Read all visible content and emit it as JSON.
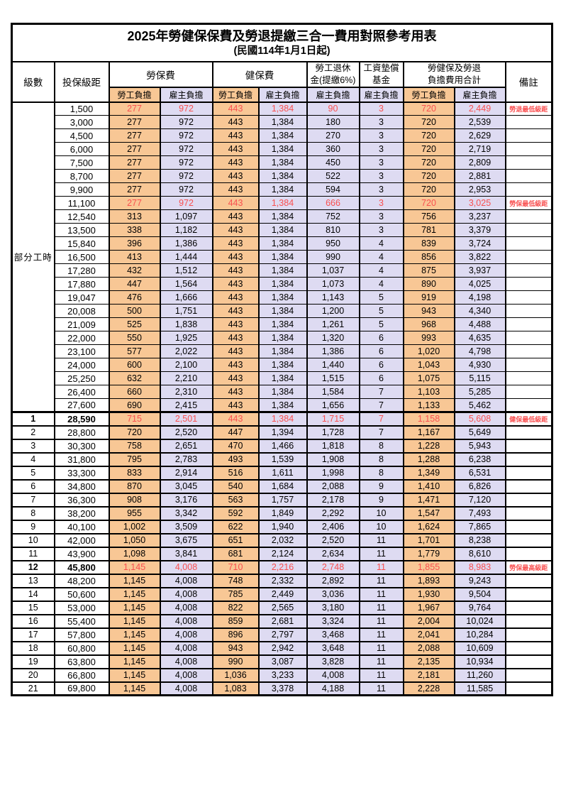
{
  "title": "2025年勞健保保費及勞退提繳三合一費用對照參考用表",
  "subtitle": "(民國114年1月1日起)",
  "part_time_label": "部分工時",
  "columns": {
    "level": "級數",
    "salary": "投保級距",
    "labor": "勞保費",
    "health": "健保費",
    "pension_line1": "勞工退休",
    "pension_line2": "金(提繳6%)",
    "wage_fund_line1": "工資墊償",
    "wage_fund_line2": "基金",
    "total_line1": "勞健保及勞退",
    "total_line2": "負擔費用合計",
    "remark": "備註",
    "employee_share": "勞工負擔",
    "employer_share": "雇主負擔"
  },
  "colors": {
    "employee_bg": "#F8C795",
    "employer_bg": "#DEDBF2",
    "highlight_text": "#F95050"
  },
  "rows": [
    {
      "level": "",
      "salary": "1,500",
      "v": [
        "277",
        "972",
        "443",
        "1,384",
        "90",
        "3",
        "720",
        "2,449"
      ],
      "remark": "勞退最低級距",
      "red": true
    },
    {
      "level": "",
      "salary": "3,000",
      "v": [
        "277",
        "972",
        "443",
        "1,384",
        "180",
        "3",
        "720",
        "2,539"
      ]
    },
    {
      "level": "",
      "salary": "4,500",
      "v": [
        "277",
        "972",
        "443",
        "1,384",
        "270",
        "3",
        "720",
        "2,629"
      ]
    },
    {
      "level": "",
      "salary": "6,000",
      "v": [
        "277",
        "972",
        "443",
        "1,384",
        "360",
        "3",
        "720",
        "2,719"
      ]
    },
    {
      "level": "",
      "salary": "7,500",
      "v": [
        "277",
        "972",
        "443",
        "1,384",
        "450",
        "3",
        "720",
        "2,809"
      ]
    },
    {
      "level": "",
      "salary": "8,700",
      "v": [
        "277",
        "972",
        "443",
        "1,384",
        "522",
        "3",
        "720",
        "2,881"
      ]
    },
    {
      "level": "",
      "salary": "9,900",
      "v": [
        "277",
        "972",
        "443",
        "1,384",
        "594",
        "3",
        "720",
        "2,953"
      ]
    },
    {
      "level": "",
      "salary": "11,100",
      "v": [
        "277",
        "972",
        "443",
        "1,384",
        "666",
        "3",
        "720",
        "3,025"
      ],
      "remark": "勞保最低級距",
      "red": true
    },
    {
      "level": "",
      "salary": "12,540",
      "v": [
        "313",
        "1,097",
        "443",
        "1,384",
        "752",
        "3",
        "756",
        "3,237"
      ]
    },
    {
      "level": "",
      "salary": "13,500",
      "v": [
        "338",
        "1,182",
        "443",
        "1,384",
        "810",
        "3",
        "781",
        "3,379"
      ]
    },
    {
      "level": "",
      "salary": "15,840",
      "v": [
        "396",
        "1,386",
        "443",
        "1,384",
        "950",
        "4",
        "839",
        "3,724"
      ]
    },
    {
      "level": "",
      "salary": "16,500",
      "v": [
        "413",
        "1,444",
        "443",
        "1,384",
        "990",
        "4",
        "856",
        "3,822"
      ]
    },
    {
      "level": "",
      "salary": "17,280",
      "v": [
        "432",
        "1,512",
        "443",
        "1,384",
        "1,037",
        "4",
        "875",
        "3,937"
      ]
    },
    {
      "level": "",
      "salary": "17,880",
      "v": [
        "447",
        "1,564",
        "443",
        "1,384",
        "1,073",
        "4",
        "890",
        "4,025"
      ]
    },
    {
      "level": "",
      "salary": "19,047",
      "v": [
        "476",
        "1,666",
        "443",
        "1,384",
        "1,143",
        "5",
        "919",
        "4,198"
      ]
    },
    {
      "level": "",
      "salary": "20,008",
      "v": [
        "500",
        "1,751",
        "443",
        "1,384",
        "1,200",
        "5",
        "943",
        "4,340"
      ]
    },
    {
      "level": "",
      "salary": "21,009",
      "v": [
        "525",
        "1,838",
        "443",
        "1,384",
        "1,261",
        "5",
        "968",
        "4,488"
      ]
    },
    {
      "level": "",
      "salary": "22,000",
      "v": [
        "550",
        "1,925",
        "443",
        "1,384",
        "1,320",
        "6",
        "993",
        "4,635"
      ]
    },
    {
      "level": "",
      "salary": "23,100",
      "v": [
        "577",
        "2,022",
        "443",
        "1,384",
        "1,386",
        "6",
        "1,020",
        "4,798"
      ]
    },
    {
      "level": "",
      "salary": "24,000",
      "v": [
        "600",
        "2,100",
        "443",
        "1,384",
        "1,440",
        "6",
        "1,043",
        "4,930"
      ]
    },
    {
      "level": "",
      "salary": "25,250",
      "v": [
        "632",
        "2,210",
        "443",
        "1,384",
        "1,515",
        "6",
        "1,075",
        "5,115"
      ]
    },
    {
      "level": "",
      "salary": "26,400",
      "v": [
        "660",
        "2,310",
        "443",
        "1,384",
        "1,584",
        "7",
        "1,103",
        "5,285"
      ]
    },
    {
      "level": "",
      "salary": "27,600",
      "v": [
        "690",
        "2,415",
        "443",
        "1,384",
        "1,656",
        "7",
        "1,133",
        "5,462"
      ]
    },
    {
      "level": "1",
      "salary": "28,590",
      "v": [
        "715",
        "2,501",
        "443",
        "1,384",
        "1,715",
        "7",
        "1,158",
        "5,608"
      ],
      "remark": "健保最低級距",
      "red": true,
      "bold": true
    },
    {
      "level": "2",
      "salary": "28,800",
      "v": [
        "720",
        "2,520",
        "447",
        "1,394",
        "1,728",
        "7",
        "1,167",
        "5,649"
      ]
    },
    {
      "level": "3",
      "salary": "30,300",
      "v": [
        "758",
        "2,651",
        "470",
        "1,466",
        "1,818",
        "8",
        "1,228",
        "5,943"
      ]
    },
    {
      "level": "4",
      "salary": "31,800",
      "v": [
        "795",
        "2,783",
        "493",
        "1,539",
        "1,908",
        "8",
        "1,288",
        "6,238"
      ]
    },
    {
      "level": "5",
      "salary": "33,300",
      "v": [
        "833",
        "2,914",
        "516",
        "1,611",
        "1,998",
        "8",
        "1,349",
        "6,531"
      ]
    },
    {
      "level": "6",
      "salary": "34,800",
      "v": [
        "870",
        "3,045",
        "540",
        "1,684",
        "2,088",
        "9",
        "1,410",
        "6,826"
      ]
    },
    {
      "level": "7",
      "salary": "36,300",
      "v": [
        "908",
        "3,176",
        "563",
        "1,757",
        "2,178",
        "9",
        "1,471",
        "7,120"
      ]
    },
    {
      "level": "8",
      "salary": "38,200",
      "v": [
        "955",
        "3,342",
        "592",
        "1,849",
        "2,292",
        "10",
        "1,547",
        "7,493"
      ]
    },
    {
      "level": "9",
      "salary": "40,100",
      "v": [
        "1,002",
        "3,509",
        "622",
        "1,940",
        "2,406",
        "10",
        "1,624",
        "7,865"
      ]
    },
    {
      "level": "10",
      "salary": "42,000",
      "v": [
        "1,050",
        "3,675",
        "651",
        "2,032",
        "2,520",
        "11",
        "1,701",
        "8,238"
      ]
    },
    {
      "level": "11",
      "salary": "43,900",
      "v": [
        "1,098",
        "3,841",
        "681",
        "2,124",
        "2,634",
        "11",
        "1,779",
        "8,610"
      ]
    },
    {
      "level": "12",
      "salary": "45,800",
      "v": [
        "1,145",
        "4,008",
        "710",
        "2,216",
        "2,748",
        "11",
        "1,855",
        "8,983"
      ],
      "remark": "勞保最高級距",
      "red": true,
      "bold": true
    },
    {
      "level": "13",
      "salary": "48,200",
      "v": [
        "1,145",
        "4,008",
        "748",
        "2,332",
        "2,892",
        "11",
        "1,893",
        "9,243"
      ]
    },
    {
      "level": "14",
      "salary": "50,600",
      "v": [
        "1,145",
        "4,008",
        "785",
        "2,449",
        "3,036",
        "11",
        "1,930",
        "9,504"
      ]
    },
    {
      "level": "15",
      "salary": "53,000",
      "v": [
        "1,145",
        "4,008",
        "822",
        "2,565",
        "3,180",
        "11",
        "1,967",
        "9,764"
      ]
    },
    {
      "level": "16",
      "salary": "55,400",
      "v": [
        "1,145",
        "4,008",
        "859",
        "2,681",
        "3,324",
        "11",
        "2,004",
        "10,024"
      ]
    },
    {
      "level": "17",
      "salary": "57,800",
      "v": [
        "1,145",
        "4,008",
        "896",
        "2,797",
        "3,468",
        "11",
        "2,041",
        "10,284"
      ]
    },
    {
      "level": "18",
      "salary": "60,800",
      "v": [
        "1,145",
        "4,008",
        "943",
        "2,942",
        "3,648",
        "11",
        "2,088",
        "10,609"
      ]
    },
    {
      "level": "19",
      "salary": "63,800",
      "v": [
        "1,145",
        "4,008",
        "990",
        "3,087",
        "3,828",
        "11",
        "2,135",
        "10,934"
      ]
    },
    {
      "level": "20",
      "salary": "66,800",
      "v": [
        "1,145",
        "4,008",
        "1,036",
        "3,233",
        "4,008",
        "11",
        "2,181",
        "11,260"
      ]
    },
    {
      "level": "21",
      "salary": "69,800",
      "v": [
        "1,145",
        "4,008",
        "1,083",
        "3,378",
        "4,188",
        "11",
        "2,228",
        "11,585"
      ]
    }
  ]
}
